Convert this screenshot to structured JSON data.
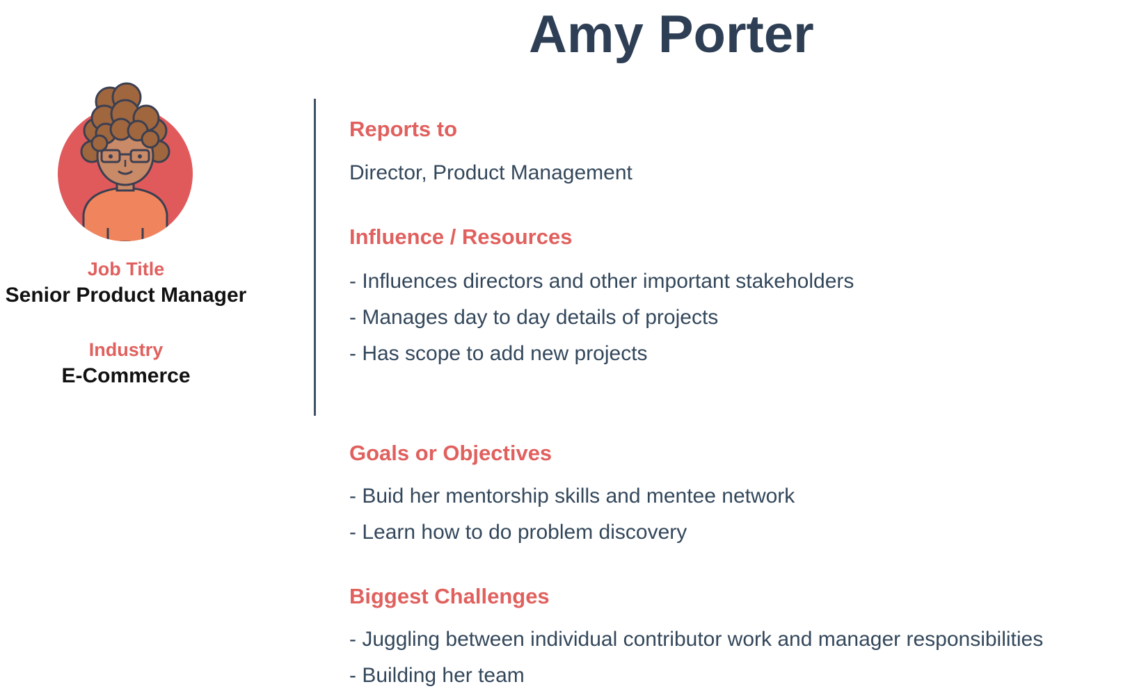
{
  "name": "Amy Porter",
  "profile": {
    "job_title_label": "Job Title",
    "job_title": "Senior Product Manager",
    "industry_label": "Industry",
    "industry": "E-Commerce"
  },
  "sections": {
    "reports_to": {
      "heading": "Reports to",
      "items": [
        "Director, Product Management"
      ]
    },
    "influence": {
      "heading": "Influence / Resources",
      "items": [
        "- Influences directors and other important stakeholders",
        "- Manages day to day details of projects",
        "- Has scope to add new projects"
      ]
    },
    "goals": {
      "heading": "Goals or Objectives",
      "items": [
        "- Buid her mentorship skills and mentee network",
        "- Learn how to do problem discovery"
      ]
    },
    "challenges": {
      "heading": "Biggest Challenges",
      "items": [
        "- Juggling between individual contributor work and manager responsibilities",
        "- Building her team"
      ]
    }
  },
  "colors": {
    "accent": "#e0605e",
    "title": "#2e3f55",
    "body_text": "#33475b",
    "avatar_circle": "#e05a5c",
    "shirt": "#f0845c",
    "hair": "#a0673f",
    "skin": "#c98a68"
  }
}
